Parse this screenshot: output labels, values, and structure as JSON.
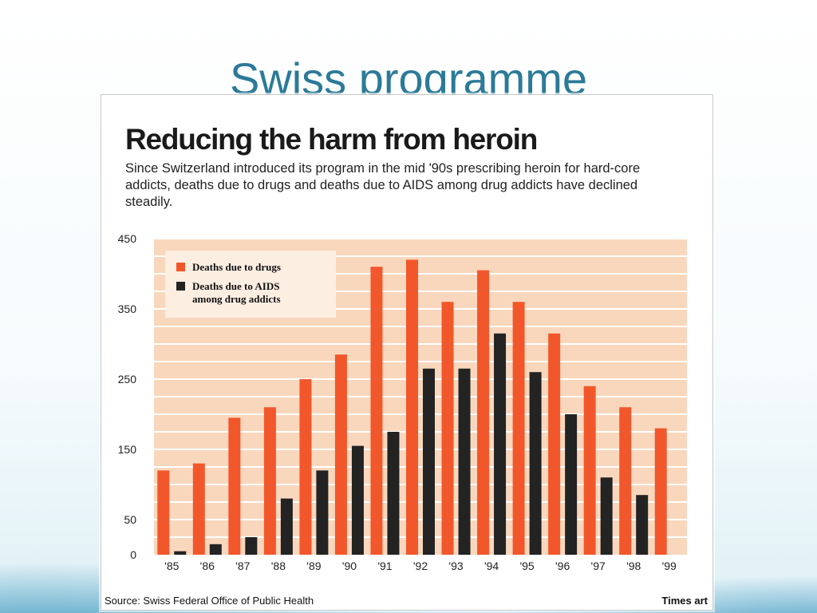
{
  "slide": {
    "title": "Swiss programme"
  },
  "footer": {
    "source": "Source: Swiss Federal Office of Public Health",
    "credit": "Times art"
  },
  "colors": {
    "drugs": "#f2572b",
    "aids": "#232323",
    "plot_bg": "#f9d7bd",
    "grid": "#ffffff"
  },
  "chart_data": {
    "type": "bar",
    "title": "Reducing the harm from heroin",
    "subtitle": "Since Switzerland introduced its program in the mid '90s prescribing heroin for hard-core addicts, deaths due to drugs and deaths due to AIDS among drug addicts have declined steadily.",
    "categories": [
      "'85",
      "'86",
      "'87",
      "'88",
      "'89",
      "'90",
      "'91",
      "'92",
      "'93",
      "'94",
      "'95",
      "'96",
      "'97",
      "'98",
      "'99"
    ],
    "series": [
      {
        "name": "Deaths due to drugs",
        "values": [
          120,
          130,
          195,
          210,
          250,
          285,
          410,
          420,
          360,
          405,
          360,
          315,
          240,
          210,
          180
        ]
      },
      {
        "name": "Deaths due to AIDS among drug addicts",
        "values": [
          5,
          15,
          25,
          80,
          120,
          155,
          175,
          265,
          265,
          315,
          260,
          200,
          110,
          85,
          0
        ]
      }
    ],
    "y_ticks": [
      0,
      50,
      150,
      250,
      350,
      450
    ],
    "ylim": [
      0,
      450
    ],
    "grid": true,
    "legend_position": "top-left"
  }
}
